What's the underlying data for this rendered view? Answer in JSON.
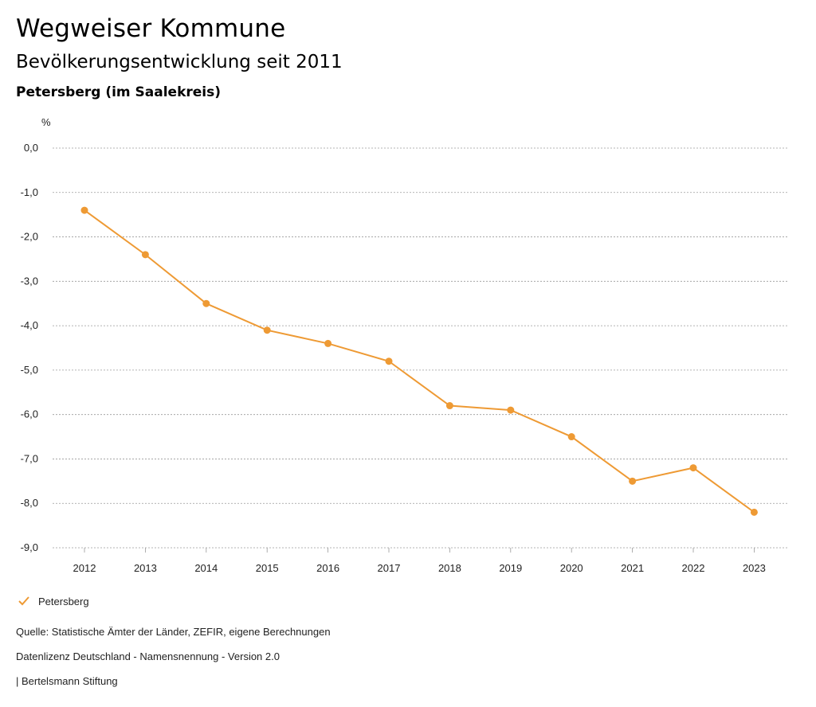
{
  "header": {
    "title": "Wegweiser Kommune",
    "subtitle": "Bevölkerungsentwicklung seit 2011",
    "region": "Petersberg (im Saalekreis)"
  },
  "chart_data": {
    "type": "line",
    "ylabel": "%",
    "ylim": [
      -9,
      0
    ],
    "yticks": [
      {
        "value": 0,
        "label": "0,0"
      },
      {
        "value": -1,
        "label": "-1,0"
      },
      {
        "value": -2,
        "label": "-2,0"
      },
      {
        "value": -3,
        "label": "-3,0"
      },
      {
        "value": -4,
        "label": "-4,0"
      },
      {
        "value": -5,
        "label": "-5,0"
      },
      {
        "value": -6,
        "label": "-6,0"
      },
      {
        "value": -7,
        "label": "-7,0"
      },
      {
        "value": -8,
        "label": "-8,0"
      },
      {
        "value": -9,
        "label": "-9,0"
      }
    ],
    "categories": [
      "2012",
      "2013",
      "2014",
      "2015",
      "2016",
      "2017",
      "2018",
      "2019",
      "2020",
      "2021",
      "2022",
      "2023"
    ],
    "series": [
      {
        "name": "Petersberg",
        "color": "#ee9a34",
        "values": [
          -1.4,
          -2.4,
          -3.5,
          -4.1,
          -4.4,
          -4.8,
          -5.8,
          -5.9,
          -6.5,
          -7.5,
          -7.2,
          -8.2
        ]
      }
    ],
    "grid": true,
    "legend": "bottom-left"
  },
  "footer": {
    "source": "Quelle: Statistische Ämter der Länder, ZEFIR, eigene Berechnungen",
    "license": "Datenlizenz Deutschland - Namensnennung - Version 2.0",
    "publisher": "| Bertelsmann Stiftung"
  },
  "legend_icon": "check-icon"
}
